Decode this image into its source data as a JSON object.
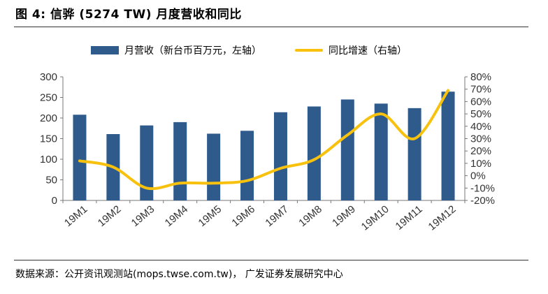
{
  "figure_title": "图 4:  信骅  (5274 TW)  月度营收和同比",
  "source": "数据来源：公开资讯观测站(mops.twse.com.tw)，  广发证券发展研究中心",
  "chart_data": {
    "type": "bar",
    "categories": [
      "19M1",
      "19M2",
      "19M3",
      "19M4",
      "19M5",
      "19M6",
      "19M7",
      "19M8",
      "19M9",
      "19M10",
      "19M11",
      "19M12"
    ],
    "series": [
      {
        "name": "月营收（新台币百万元，左轴）",
        "type": "bar",
        "axis": "left",
        "color": "#2e5a8c",
        "values": [
          208,
          161,
          182,
          190,
          162,
          169,
          214,
          228,
          245,
          235,
          224,
          264
        ]
      },
      {
        "name": "同比增速（右轴）",
        "type": "line",
        "axis": "right",
        "color": "#f7c10e",
        "values": [
          0.12,
          0.07,
          -0.1,
          -0.06,
          -0.06,
          -0.04,
          0.06,
          0.13,
          0.33,
          0.5,
          0.3,
          0.69
        ]
      }
    ],
    "y_left": {
      "min": 0,
      "max": 300,
      "ticks": [
        "0",
        "50",
        "100",
        "150",
        "200",
        "250",
        "300"
      ]
    },
    "y_right": {
      "min": -0.2,
      "max": 0.8,
      "ticks": [
        "-20%",
        "-10%",
        "0%",
        "10%",
        "20%",
        "30%",
        "40%",
        "50%",
        "60%",
        "70%",
        "80%"
      ]
    },
    "grid": false,
    "legend_position": "top"
  }
}
